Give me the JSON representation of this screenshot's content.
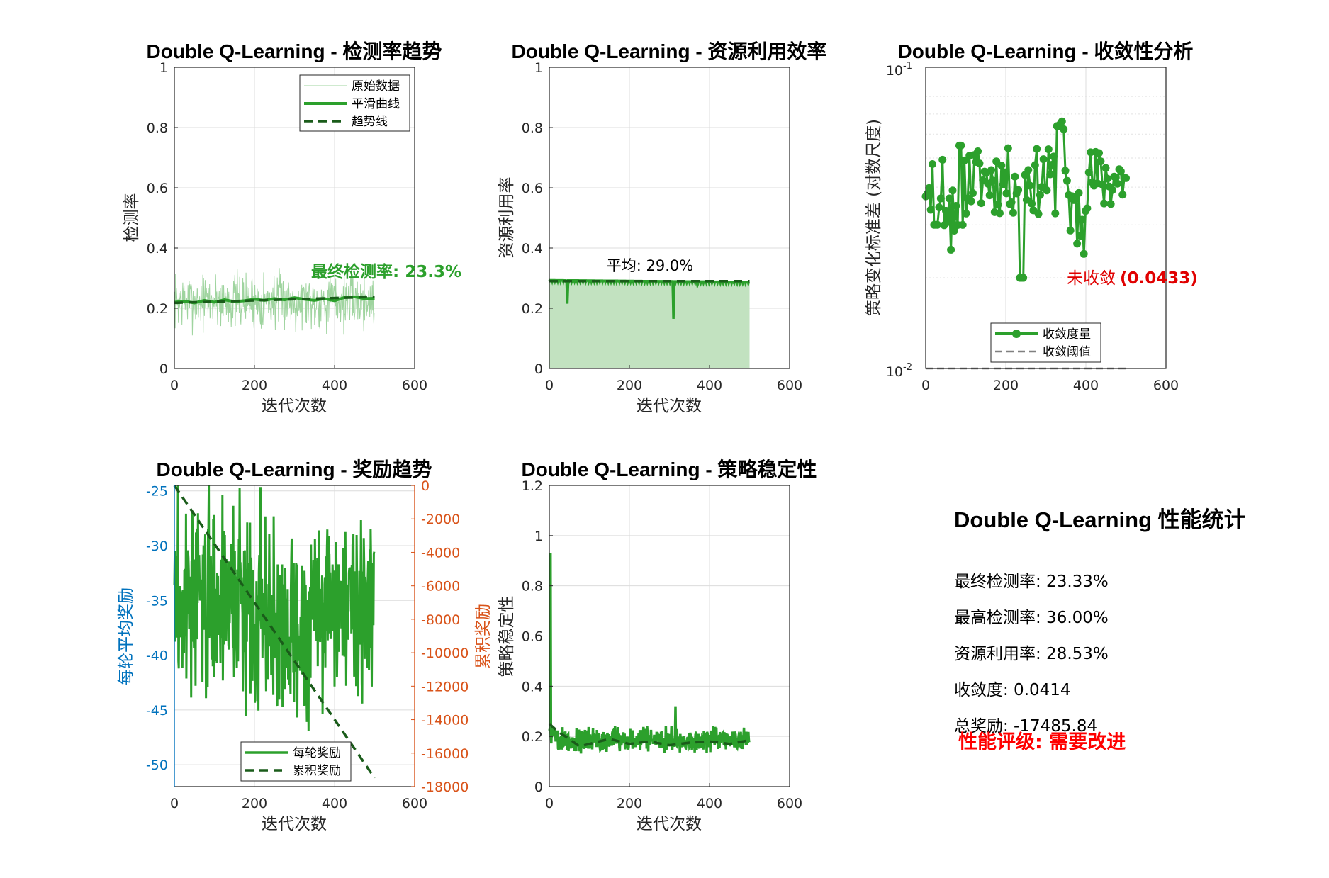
{
  "colors": {
    "green": "#2ca02c",
    "dark_green": "#1a5c1a",
    "light_green": "#9fd49f",
    "fill_green": "#c2e2c0",
    "blue_axis": "#0072bd",
    "orange_axis": "#d95319",
    "red": "#e00000",
    "gray": "#808080"
  },
  "stats": {
    "title": "Double Q-Learning 性能统计",
    "lines": [
      "最终检测率: 23.33%",
      "最高检测率: 36.00%",
      "资源利用率: 28.53%",
      "收敛度: 0.0414",
      "总奖励: -17485.84"
    ],
    "grade": "性能评级: 需要改进"
  },
  "chart_data": [
    {
      "id": "detection",
      "type": "line",
      "title": "Double Q-Learning - 检测率趋势",
      "xlabel": "迭代次数",
      "ylabel": "检测率",
      "xlim": [
        0,
        600
      ],
      "ylim": [
        0,
        1
      ],
      "xticks": [
        0,
        200,
        400,
        600
      ],
      "yticks": [
        0,
        0.2,
        0.4,
        0.6,
        0.8,
        1
      ],
      "grid": true,
      "legend": {
        "placement": "top-right",
        "entries": [
          "原始数据",
          "平滑曲线",
          "趋势线"
        ]
      },
      "annotation": "最终检测率: 23.3%",
      "series": [
        {
          "name": "原始数据",
          "style": "thin-light",
          "n": 500,
          "base": 0.225,
          "noise": 0.05,
          "seed": 7
        },
        {
          "name": "平滑曲线",
          "style": "thick",
          "x": [
            0,
            25,
            50,
            75,
            100,
            125,
            150,
            175,
            200,
            225,
            250,
            275,
            300,
            325,
            350,
            375,
            400,
            425,
            450,
            475,
            500
          ],
          "y": [
            0.22,
            0.223,
            0.218,
            0.226,
            0.22,
            0.228,
            0.222,
            0.225,
            0.23,
            0.226,
            0.232,
            0.228,
            0.235,
            0.23,
            0.226,
            0.232,
            0.225,
            0.236,
            0.238,
            0.232,
            0.233
          ]
        },
        {
          "name": "趋势线",
          "style": "dashed",
          "x": [
            0,
            500
          ],
          "y": [
            0.218,
            0.238
          ]
        }
      ]
    },
    {
      "id": "resource",
      "type": "area",
      "title": "Double Q-Learning - 资源利用效率",
      "xlabel": "迭代次数",
      "ylabel": "资源利用率",
      "xlim": [
        0,
        600
      ],
      "ylim": [
        0,
        1
      ],
      "xticks": [
        0,
        200,
        400,
        600
      ],
      "yticks": [
        0,
        0.2,
        0.4,
        0.6,
        0.8,
        1
      ],
      "grid": true,
      "annotation": "平均: 29.0%",
      "series": [
        {
          "name": "资源利用率",
          "style": "area",
          "n": 500,
          "base": 0.293,
          "end": 0.287,
          "dips": [
            [
              45,
              0.215
            ],
            [
              310,
              0.165
            ],
            [
              370,
              0.277
            ],
            [
              460,
              0.285
            ]
          ]
        },
        {
          "name": "平均",
          "style": "dashed",
          "x": [
            0,
            500
          ],
          "y": [
            0.29,
            0.29
          ]
        }
      ]
    },
    {
      "id": "convergence",
      "type": "line",
      "title": "Double Q-Learning - 收敛性分析",
      "xlabel": "",
      "ylabel": "策略变化标准差 (对数尺度)",
      "xlim": [
        0,
        600
      ],
      "ylim": [
        0.01,
        0.1
      ],
      "yscale": "log",
      "xticks": [
        0,
        200,
        400,
        600
      ],
      "ytick_labels": [
        {
          "base": "10",
          "exp": "-2"
        },
        {
          "base": "10",
          "exp": "-1"
        }
      ],
      "grid": true,
      "legend": {
        "placement": "bottom-center",
        "entries": [
          "收敛度量",
          "收敛阈值"
        ]
      },
      "annotation": {
        "label": "未收敛",
        "value": "(0.0433)"
      },
      "series": [
        {
          "name": "收敛度量",
          "style": "line-markers",
          "n": 120,
          "seed": 11
        },
        {
          "name": "收敛阈值",
          "style": "dashed-gray",
          "x": [
            0,
            500
          ],
          "y": [
            0.01,
            0.01
          ]
        }
      ]
    },
    {
      "id": "reward",
      "type": "line",
      "title": "Double Q-Learning - 奖励趋势",
      "xlabel": "迭代次数",
      "ylabel_left": "每轮平均奖励",
      "ylabel_right": "累积奖励",
      "xlim": [
        0,
        600
      ],
      "ylim_left": [
        -52,
        -24.5
      ],
      "ylim_right": [
        -18000,
        0
      ],
      "xticks": [
        0,
        200,
        400,
        600
      ],
      "yticks_left": [
        -25,
        -30,
        -35,
        -40,
        -45,
        -50
      ],
      "yticks_right": [
        0,
        -2000,
        -4000,
        -6000,
        -8000,
        -10000,
        -12000,
        -14000,
        -16000,
        -18000
      ],
      "grid": true,
      "legend": {
        "placement": "bottom-right",
        "entries": [
          "每轮奖励",
          "累积奖励"
        ]
      },
      "series": [
        {
          "name": "每轮奖励",
          "axis": "left",
          "style": "thick",
          "n": 500,
          "base": -35,
          "noise": 4.5,
          "seed": 3
        },
        {
          "name": "累积奖励",
          "axis": "right",
          "style": "dashed",
          "x": [
            0,
            500
          ],
          "y": [
            0,
            -17485.84
          ]
        }
      ]
    },
    {
      "id": "stability",
      "type": "line",
      "title": "Double Q-Learning - 策略稳定性",
      "xlabel": "迭代次数",
      "ylabel": "策略稳定性",
      "xlim": [
        0,
        600
      ],
      "ylim": [
        0,
        1.2
      ],
      "xticks": [
        0,
        200,
        400,
        600
      ],
      "yticks": [
        0,
        0.2,
        0.4,
        0.6,
        0.8,
        1,
        1.2
      ],
      "grid": true,
      "series": [
        {
          "name": "策略稳定性",
          "style": "thick",
          "n": 500,
          "base": 0.185,
          "noise": 0.03,
          "seed": 5,
          "spike": [
            [
              3,
              0.93
            ],
            [
              315,
              0.32
            ]
          ]
        },
        {
          "name": "趋势",
          "style": "dashed",
          "x": [
            0,
            25,
            50,
            75,
            100,
            150,
            200,
            250,
            300,
            350,
            400,
            450,
            500
          ],
          "y": [
            0.25,
            0.215,
            0.19,
            0.16,
            0.17,
            0.19,
            0.17,
            0.18,
            0.165,
            0.175,
            0.18,
            0.17,
            0.185
          ]
        }
      ]
    }
  ]
}
